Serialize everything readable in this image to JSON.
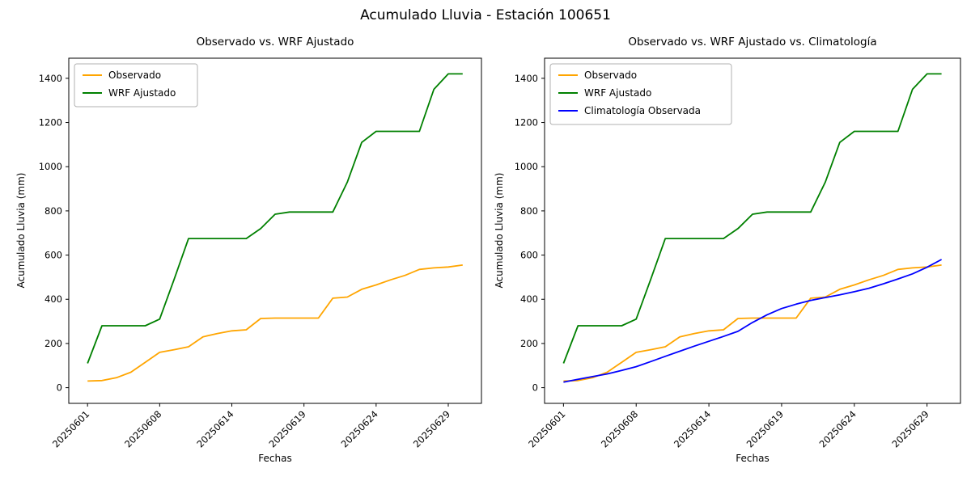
{
  "figure": {
    "suptitle": "Acumulado Lluvia - Estación 100651"
  },
  "chart_data": [
    {
      "type": "line",
      "title": "Observado vs. WRF Ajustado",
      "xlabel": "Fechas",
      "ylabel": "Acumulado Lluvia (mm)",
      "x_categories": [
        "20250601",
        "20250603",
        "20250604",
        "20250606",
        "20250607",
        "20250608",
        "20250609",
        "20250610",
        "20250611",
        "20250613",
        "20250614",
        "20250615",
        "20250616",
        "20250617",
        "20250618",
        "20250619",
        "20250620",
        "20250621",
        "20250622",
        "20250623",
        "20250624",
        "20250625",
        "20250626",
        "20250627",
        "20250628",
        "20250629",
        "20250630"
      ],
      "x_tick_indices": [
        0,
        5,
        10,
        15,
        20,
        25
      ],
      "x_tick_labels": [
        "20250601",
        "20250608",
        "20250614",
        "20250619",
        "20250624",
        "20250629"
      ],
      "x_tick_rotation": 45,
      "y_ticks": [
        0,
        200,
        400,
        600,
        800,
        1000,
        1200,
        1400
      ],
      "ylim": [
        -71,
        1491
      ],
      "grid": false,
      "legend_position": "upper-left",
      "series": [
        {
          "name": "Observado",
          "color": "#FFA500",
          "values": [
            30,
            32,
            45,
            70,
            115,
            160,
            172,
            185,
            230,
            245,
            257,
            262,
            313,
            315,
            315,
            315,
            315,
            405,
            410,
            445,
            465,
            488,
            508,
            535,
            542,
            546,
            555
          ]
        },
        {
          "name": "WRF Ajustado",
          "color": "#008000",
          "values": [
            110,
            280,
            280,
            280,
            280,
            310,
            490,
            675,
            675,
            675,
            675,
            675,
            720,
            785,
            795,
            795,
            795,
            795,
            930,
            1110,
            1160,
            1160,
            1160,
            1160,
            1350,
            1420,
            1420
          ]
        }
      ]
    },
    {
      "type": "line",
      "title": "Observado vs. WRF Ajustado vs. Climatología",
      "xlabel": "Fechas",
      "ylabel": "Acumulado Lluvia (mm)",
      "x_categories": [
        "20250601",
        "20250603",
        "20250604",
        "20250606",
        "20250607",
        "20250608",
        "20250609",
        "20250610",
        "20250611",
        "20250613",
        "20250614",
        "20250615",
        "20250616",
        "20250617",
        "20250618",
        "20250619",
        "20250620",
        "20250621",
        "20250622",
        "20250623",
        "20250624",
        "20250625",
        "20250626",
        "20250627",
        "20250628",
        "20250629",
        "20250630"
      ],
      "x_tick_indices": [
        0,
        5,
        10,
        15,
        20,
        25
      ],
      "x_tick_labels": [
        "20250601",
        "20250608",
        "20250614",
        "20250619",
        "20250624",
        "20250629"
      ],
      "x_tick_rotation": 45,
      "y_ticks": [
        0,
        200,
        400,
        600,
        800,
        1000,
        1200,
        1400
      ],
      "ylim": [
        -71,
        1491
      ],
      "grid": false,
      "legend_position": "upper-left",
      "series": [
        {
          "name": "Observado",
          "color": "#FFA500",
          "values": [
            30,
            32,
            45,
            70,
            115,
            160,
            172,
            185,
            230,
            245,
            257,
            262,
            313,
            315,
            315,
            315,
            315,
            405,
            410,
            445,
            465,
            488,
            508,
            535,
            542,
            546,
            555
          ]
        },
        {
          "name": "WRF Ajustado",
          "color": "#008000",
          "values": [
            110,
            280,
            280,
            280,
            280,
            310,
            490,
            675,
            675,
            675,
            675,
            675,
            720,
            785,
            795,
            795,
            795,
            795,
            930,
            1110,
            1160,
            1160,
            1160,
            1160,
            1350,
            1420,
            1420
          ]
        },
        {
          "name": "Climatología Observada",
          "color": "#0000FF",
          "values": [
            25,
            38,
            50,
            62,
            78,
            95,
            118,
            142,
            165,
            188,
            210,
            232,
            255,
            295,
            330,
            358,
            378,
            395,
            408,
            420,
            434,
            450,
            470,
            492,
            515,
            545,
            580
          ]
        }
      ]
    }
  ]
}
